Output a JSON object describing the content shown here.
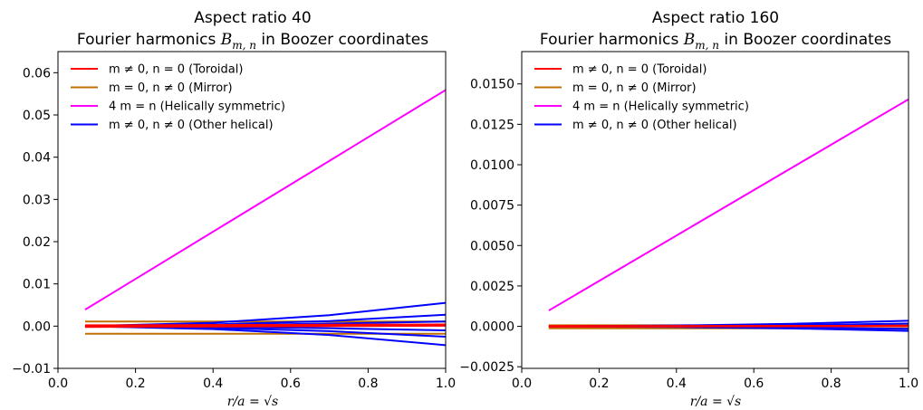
{
  "chart_data": [
    {
      "type": "line",
      "title": "Aspect ratio 40",
      "subtitle": "Fourier harmonics B_{m,n} in Boozer coordinates",
      "xlabel": "r/a = √s",
      "ylabel": "",
      "xlim": [
        0.0,
        1.0
      ],
      "ylim": [
        -0.01,
        0.065
      ],
      "x_ticks": [
        0.0,
        0.2,
        0.4,
        0.6,
        0.8,
        1.0
      ],
      "x_tick_labels": [
        "0.0",
        "0.2",
        "0.4",
        "0.6",
        "0.8",
        "1.0"
      ],
      "y_ticks": [
        -0.01,
        0.0,
        0.01,
        0.02,
        0.03,
        0.04,
        0.05,
        0.06
      ],
      "y_tick_labels": [
        "−0.01",
        "0.00",
        "0.01",
        "0.02",
        "0.03",
        "0.04",
        "0.05",
        "0.06"
      ],
      "legend_position": "top-left",
      "legend": [
        {
          "label": "m ≠ 0, n = 0 (Toroidal)",
          "color": "#ff0000"
        },
        {
          "label": "m = 0, n ≠ 0 (Mirror)",
          "color": "#c07000"
        },
        {
          "label": "4 m = n (Helically symmetric)",
          "color": "#ff00ff"
        },
        {
          "label": "m ≠ 0, n ≠ 0 (Other helical)",
          "color": "#0000ff"
        }
      ],
      "series": [
        {
          "group": "Mirror",
          "color": "#c07000",
          "x": [
            0.07,
            1.0
          ],
          "y": [
            0.0011,
            0.0011
          ]
        },
        {
          "group": "Mirror",
          "color": "#c07000",
          "x": [
            0.07,
            1.0
          ],
          "y": [
            -0.0018,
            -0.0018
          ]
        },
        {
          "group": "Other helical",
          "color": "#0000ff",
          "x": [
            0.07,
            0.4,
            0.7,
            1.0
          ],
          "y": [
            0.0,
            0.0008,
            0.0026,
            0.0055
          ]
        },
        {
          "group": "Other helical",
          "color": "#0000ff",
          "x": [
            0.07,
            0.4,
            0.7,
            1.0
          ],
          "y": [
            0.0,
            0.0004,
            0.0012,
            0.0027
          ]
        },
        {
          "group": "Other helical",
          "color": "#0000ff",
          "x": [
            0.07,
            0.4,
            0.7,
            1.0
          ],
          "y": [
            0.0,
            0.0002,
            0.0006,
            0.0011
          ]
        },
        {
          "group": "Other helical",
          "color": "#0000ff",
          "x": [
            0.07,
            0.4,
            0.7,
            1.0
          ],
          "y": [
            0.0,
            -0.0002,
            -0.0005,
            -0.001
          ]
        },
        {
          "group": "Other helical",
          "color": "#0000ff",
          "x": [
            0.07,
            0.4,
            0.7,
            1.0
          ],
          "y": [
            0.0,
            -0.0004,
            -0.0012,
            -0.0025
          ]
        },
        {
          "group": "Other helical",
          "color": "#0000ff",
          "x": [
            0.07,
            0.4,
            0.7,
            1.0
          ],
          "y": [
            0.0,
            -0.0007,
            -0.0021,
            -0.0045
          ]
        },
        {
          "group": "Toroidal",
          "color": "#ff0000",
          "x": [
            0.07,
            1.0
          ],
          "y": [
            0.0002,
            0.0004
          ]
        },
        {
          "group": "Toroidal",
          "color": "#ff0000",
          "x": [
            0.07,
            1.0
          ],
          "y": [
            -0.0002,
            0.0001
          ]
        },
        {
          "group": "Helically symmetric",
          "color": "#ff00ff",
          "x": [
            0.07,
            1.0
          ],
          "y": [
            0.0039,
            0.0559
          ]
        }
      ]
    },
    {
      "type": "line",
      "title": "Aspect ratio 160",
      "subtitle": "Fourier harmonics B_{m,n} in Boozer coordinates",
      "xlabel": "r/a = √s",
      "ylabel": "",
      "xlim": [
        0.0,
        1.0
      ],
      "ylim": [
        -0.0026,
        0.017
      ],
      "x_ticks": [
        0.0,
        0.2,
        0.4,
        0.6,
        0.8,
        1.0
      ],
      "x_tick_labels": [
        "0.0",
        "0.2",
        "0.4",
        "0.6",
        "0.8",
        "1.0"
      ],
      "y_ticks": [
        -0.0025,
        0.0,
        0.0025,
        0.005,
        0.0075,
        0.01,
        0.0125,
        0.015
      ],
      "y_tick_labels": [
        "−0.0025",
        "0.0000",
        "0.0025",
        "0.0050",
        "0.0075",
        "0.0100",
        "0.0125",
        "0.0150"
      ],
      "legend_position": "top-left",
      "legend": [
        {
          "label": "m ≠ 0, n = 0 (Toroidal)",
          "color": "#ff0000"
        },
        {
          "label": "m = 0, n ≠ 0 (Mirror)",
          "color": "#c07000"
        },
        {
          "label": "4 m = n (Helically symmetric)",
          "color": "#ff00ff"
        },
        {
          "label": "m ≠ 0, n ≠ 0 (Other helical)",
          "color": "#0000ff"
        }
      ],
      "series": [
        {
          "group": "Mirror",
          "color": "#c07000",
          "x": [
            0.07,
            1.0
          ],
          "y": [
            7e-05,
            7e-05
          ]
        },
        {
          "group": "Mirror",
          "color": "#c07000",
          "x": [
            0.07,
            1.0
          ],
          "y": [
            -0.00012,
            -0.00012
          ]
        },
        {
          "group": "Other helical",
          "color": "#0000ff",
          "x": [
            0.07,
            0.4,
            0.7,
            1.0
          ],
          "y": [
            0.0,
            5e-05,
            0.00016,
            0.00035
          ]
        },
        {
          "group": "Other helical",
          "color": "#0000ff",
          "x": [
            0.07,
            0.4,
            0.7,
            1.0
          ],
          "y": [
            0.0,
            2e-05,
            8e-05,
            0.00017
          ]
        },
        {
          "group": "Other helical",
          "color": "#0000ff",
          "x": [
            0.07,
            0.4,
            0.7,
            1.0
          ],
          "y": [
            0.0,
            -2e-05,
            -7e-05,
            -0.00016
          ]
        },
        {
          "group": "Other helical",
          "color": "#0000ff",
          "x": [
            0.07,
            0.4,
            0.7,
            1.0
          ],
          "y": [
            0.0,
            -4e-05,
            -0.00013,
            -0.00028
          ]
        },
        {
          "group": "Toroidal",
          "color": "#ff0000",
          "x": [
            0.07,
            1.0
          ],
          "y": [
            2e-05,
            4e-05
          ]
        },
        {
          "group": "Toroidal",
          "color": "#ff0000",
          "x": [
            0.07,
            1.0
          ],
          "y": [
            -2e-05,
            1e-05
          ]
        },
        {
          "group": "Helically symmetric",
          "color": "#ff00ff",
          "x": [
            0.07,
            1.0
          ],
          "y": [
            0.00098,
            0.01405
          ]
        }
      ]
    }
  ]
}
